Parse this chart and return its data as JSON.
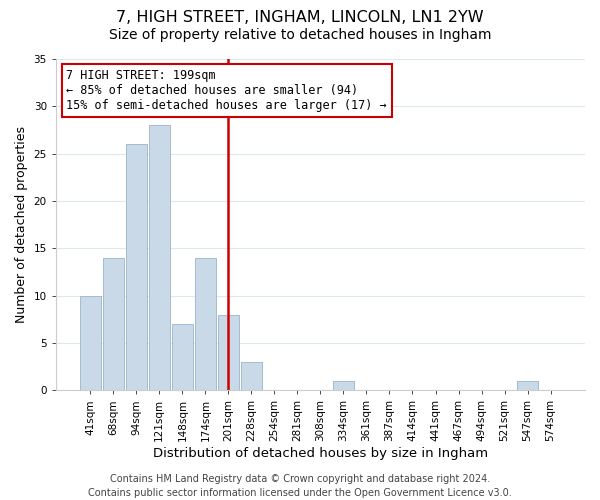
{
  "title": "7, HIGH STREET, INGHAM, LINCOLN, LN1 2YW",
  "subtitle": "Size of property relative to detached houses in Ingham",
  "xlabel": "Distribution of detached houses by size in Ingham",
  "ylabel": "Number of detached properties",
  "bar_labels": [
    "41sqm",
    "68sqm",
    "94sqm",
    "121sqm",
    "148sqm",
    "174sqm",
    "201sqm",
    "228sqm",
    "254sqm",
    "281sqm",
    "308sqm",
    "334sqm",
    "361sqm",
    "387sqm",
    "414sqm",
    "441sqm",
    "467sqm",
    "494sqm",
    "521sqm",
    "547sqm",
    "574sqm"
  ],
  "bar_values": [
    10,
    14,
    26,
    28,
    7,
    14,
    8,
    3,
    0,
    0,
    0,
    1,
    0,
    0,
    0,
    0,
    0,
    0,
    0,
    1,
    0
  ],
  "bar_color": "#c9d9e8",
  "bar_edge_color": "#9ab5cb",
  "vline_index": 6,
  "vline_color": "#cc0000",
  "ylim": [
    0,
    35
  ],
  "yticks": [
    0,
    5,
    10,
    15,
    20,
    25,
    30,
    35
  ],
  "annotation_title": "7 HIGH STREET: 199sqm",
  "annotation_line1": "← 85% of detached houses are smaller (94)",
  "annotation_line2": "15% of semi-detached houses are larger (17) →",
  "annotation_box_color": "#ffffff",
  "annotation_box_edge": "#cc0000",
  "footer_line1": "Contains HM Land Registry data © Crown copyright and database right 2024.",
  "footer_line2": "Contains public sector information licensed under the Open Government Licence v3.0.",
  "title_fontsize": 11.5,
  "subtitle_fontsize": 10,
  "xlabel_fontsize": 9.5,
  "ylabel_fontsize": 9,
  "tick_fontsize": 7.5,
  "annotation_fontsize": 8.5,
  "footer_fontsize": 7,
  "background_color": "#ffffff",
  "grid_color": "#dce8f0"
}
